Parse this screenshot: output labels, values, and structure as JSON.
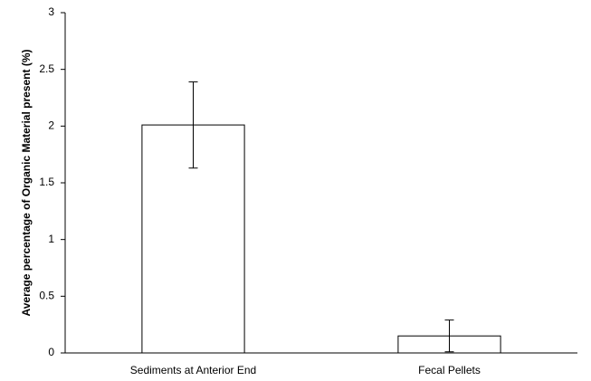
{
  "chart_data": {
    "type": "bar",
    "y_label": "Average percentage of Organic Material present (%)",
    "categories": [
      "Sediments at Anterior End",
      "Fecal Pellets"
    ],
    "values": [
      2.01,
      0.15
    ],
    "errors": [
      0.38,
      0.14
    ],
    "color": "#ffffff",
    "ylim": [
      0,
      3
    ],
    "yticks": [
      0,
      0.5,
      1,
      1.5,
      2,
      2.5,
      3
    ],
    "grid": false
  }
}
